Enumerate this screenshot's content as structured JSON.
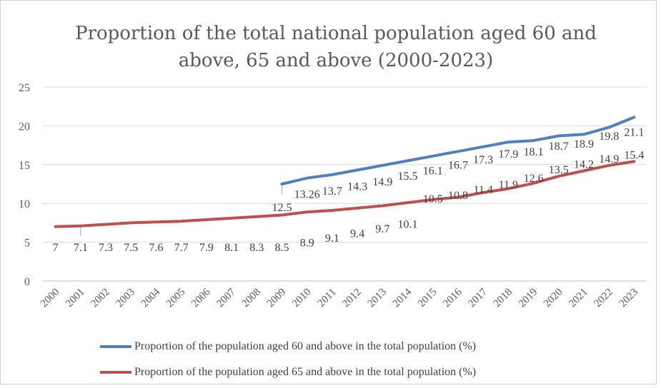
{
  "chart_data": {
    "type": "line",
    "title_line1": "Proportion of the total national population aged 60 and",
    "title_line2": "above, 65 and above (2000-2023)",
    "categories": [
      "2000",
      "2001",
      "2002",
      "2003",
      "2004",
      "2005",
      "2006",
      "2007",
      "2008",
      "2009",
      "2010",
      "2011",
      "2012",
      "2013",
      "2014",
      "2015",
      "2016",
      "2017",
      "2018",
      "2019",
      "2020",
      "2021",
      "2022",
      "2023"
    ],
    "ylim": [
      0,
      25
    ],
    "yticks": [
      "0",
      "5",
      "10",
      "15",
      "20",
      "25"
    ],
    "grid": true,
    "legend_position": "bottom",
    "series": [
      {
        "name": "Proportion of the population aged 60 and above in the total population (%)",
        "color": "#4f81bd",
        "values": [
          null,
          null,
          null,
          null,
          null,
          null,
          null,
          null,
          null,
          12.5,
          13.26,
          13.7,
          14.3,
          14.9,
          15.5,
          16.1,
          16.7,
          17.3,
          17.9,
          18.1,
          18.7,
          18.9,
          19.8,
          21.1
        ],
        "labels": [
          "",
          "",
          "",
          "",
          "",
          "",
          "",
          "",
          "",
          "12.5",
          "13.26",
          "13.7",
          "14.3",
          "14.9",
          "15.5",
          "16.1",
          "16.7",
          "17.3",
          "17.9",
          "18.1",
          "18.7",
          "18.9",
          "19.8",
          "21.1"
        ]
      },
      {
        "name": "Proportion of the population aged 65 and above in the total population (%)",
        "color": "#c0504d",
        "values": [
          7,
          7.1,
          7.3,
          7.5,
          7.6,
          7.7,
          7.9,
          8.1,
          8.3,
          8.5,
          8.9,
          9.1,
          9.4,
          9.7,
          10.1,
          10.5,
          10.8,
          11.4,
          11.9,
          12.6,
          13.5,
          14.2,
          14.9,
          15.4
        ],
        "labels": [
          "7",
          "7.1",
          "7.3",
          "7.5",
          "7.6",
          "7.7",
          "7.9",
          "8.1",
          "8.3",
          "8.5",
          "8.9",
          "9.1",
          "9.4",
          "9.7",
          "10.1",
          "10.5",
          "10.8",
          "11.4",
          "11.9",
          "12.6",
          "13.5",
          "14.2",
          "14.9",
          "15.4"
        ]
      }
    ]
  }
}
